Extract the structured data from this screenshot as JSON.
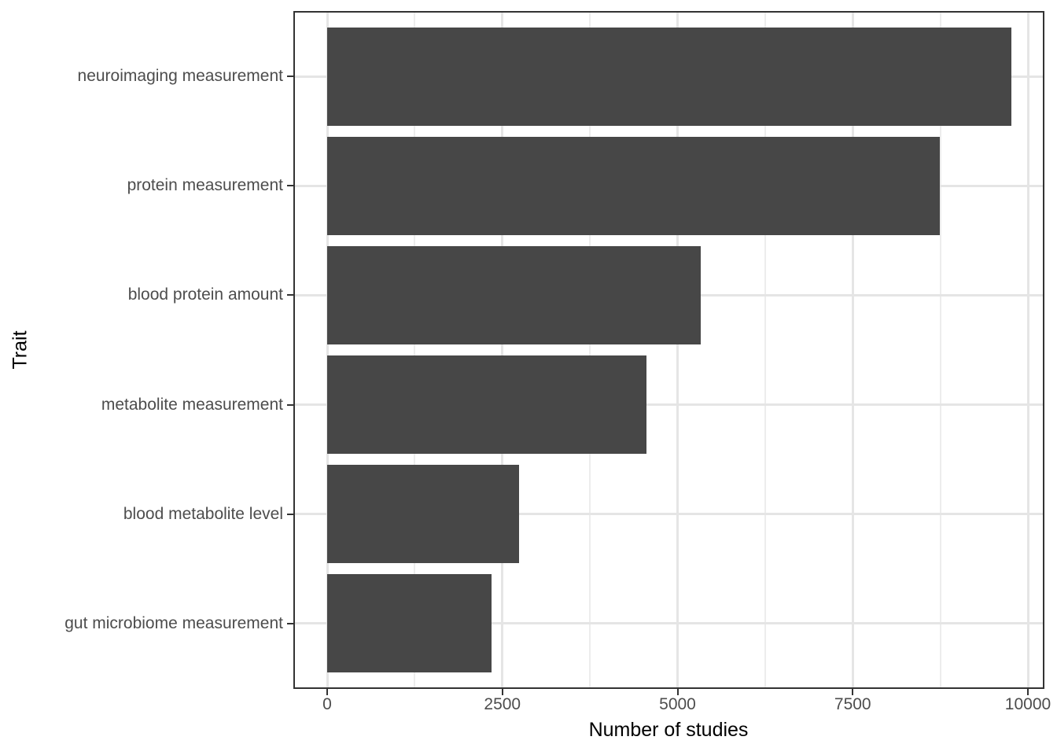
{
  "chart_data": {
    "type": "bar",
    "orientation": "horizontal",
    "title": "",
    "xlabel": "Number of studies",
    "ylabel": "Trait",
    "categories": [
      "neuroimaging measurement",
      "protein measurement",
      "blood protein amount",
      "metabolite measurement",
      "blood metabolite level",
      "gut microbiome measurement"
    ],
    "values": [
      9760,
      8740,
      5330,
      4560,
      2740,
      2350
    ],
    "x_ticks": [
      0,
      2500,
      5000,
      7500,
      10000
    ],
    "x_minor_gridlines": [
      1250,
      3750,
      6250,
      8750
    ],
    "xlim": [
      0,
      10000
    ],
    "bar_color": "#474747",
    "grid": "vertical major + minor, horizontal major at category centers",
    "legend_position": "none",
    "style": "ggplot2 theme_bw, dark panel border, light gray gridlines"
  }
}
